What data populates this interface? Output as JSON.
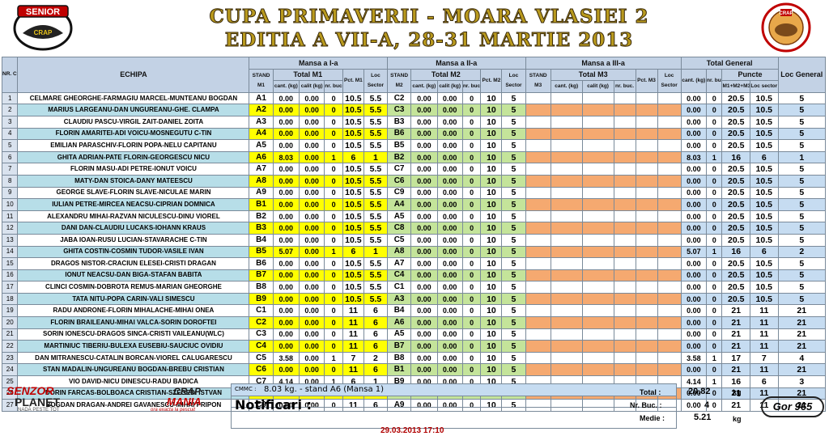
{
  "header": {
    "title_line1": "CUPA PRIMAVERII - MOARA VLASIEI 2",
    "title_line2": "EDITIA  A VII-A, 28-31 MARTIE 2013",
    "logo_left_text": "SENIOR",
    "logo_left_sub": "CRAP",
    "logo_right_text": "CRAP"
  },
  "columns": {
    "nr": "NR. CRT.",
    "team": "ECHIPA",
    "m1": "Mansa a I-a",
    "m2": "Mansa a II-a",
    "m3": "Mansa a III-a",
    "total": "Total General",
    "loc_general": "Loc General",
    "stand_m1": "STAND M1",
    "stand_m2": "STAND M2",
    "stand_m3": "STAND M3",
    "total_m1": "Total M1",
    "total_m2": "Total M2",
    "total_m3": "Total M3",
    "cant": "cant. (kg)",
    "calit": "calit (kg)",
    "nrbuc": "nr. buc.",
    "pct_m1": "Pct. M1",
    "pct_m2": "Pct. M2",
    "pct_m3": "Pct. M3",
    "loc_sector": "Loc Sector",
    "puncte": "Puncte",
    "m1m2m3": "M1+M2+M3",
    "loc_sector2": "Loc sector"
  },
  "rows": [
    {
      "nr": "1",
      "team": "CELMARE GHEORGHE-FARMAGIU MARCEL-MUNTEANU BOGDAN",
      "s1": "A1",
      "c1": "0.00",
      "q1": "0.00",
      "b1": "0",
      "p1": "10.5",
      "l1": "5.5",
      "s2": "C2",
      "c2": "0.00",
      "q2": "0.00",
      "b2": "0",
      "p2": "10",
      "l2": "5",
      "tc": "0.00",
      "tb": "0",
      "tp": "20.5",
      "tl": "10.5",
      "lg": "5"
    },
    {
      "nr": "2",
      "team": "MARIUS LARGEANU-DAN UNGUREANU-GHE. CLAMPA",
      "s1": "A2",
      "c1": "0.00",
      "q1": "0.00",
      "b1": "0",
      "p1": "10.5",
      "l1": "5.5",
      "s2": "C3",
      "c2": "0.00",
      "q2": "0.00",
      "b2": "0",
      "p2": "10",
      "l2": "5",
      "tc": "0.00",
      "tb": "0",
      "tp": "20.5",
      "tl": "10.5",
      "lg": "5"
    },
    {
      "nr": "3",
      "team": "CLAUDIU PASCU-VIRGIL ZAIT-DANIEL ZOITA",
      "s1": "A3",
      "c1": "0.00",
      "q1": "0.00",
      "b1": "0",
      "p1": "10.5",
      "l1": "5.5",
      "s2": "B3",
      "c2": "0.00",
      "q2": "0.00",
      "b2": "0",
      "p2": "10",
      "l2": "5",
      "tc": "0.00",
      "tb": "0",
      "tp": "20.5",
      "tl": "10.5",
      "lg": "5"
    },
    {
      "nr": "4",
      "team": "FLORIN AMARITEI-ADI VOICU-MOSNEGUTU C-TIN",
      "s1": "A4",
      "c1": "0.00",
      "q1": "0.00",
      "b1": "0",
      "p1": "10.5",
      "l1": "5.5",
      "s2": "B6",
      "c2": "0.00",
      "q2": "0.00",
      "b2": "0",
      "p2": "10",
      "l2": "5",
      "tc": "0.00",
      "tb": "0",
      "tp": "20.5",
      "tl": "10.5",
      "lg": "5"
    },
    {
      "nr": "5",
      "team": "EMILIAN PARASCHIV-FLORIN POPA-NELU CAPITANU",
      "s1": "A5",
      "c1": "0.00",
      "q1": "0.00",
      "b1": "0",
      "p1": "10.5",
      "l1": "5.5",
      "s2": "B5",
      "c2": "0.00",
      "q2": "0.00",
      "b2": "0",
      "p2": "10",
      "l2": "5",
      "tc": "0.00",
      "tb": "0",
      "tp": "20.5",
      "tl": "10.5",
      "lg": "5"
    },
    {
      "nr": "6",
      "team": "GHITA ADRIAN-PATE FLORIN-GEORGESCU NICU",
      "s1": "A6",
      "c1": "8.03",
      "q1": "0.00",
      "b1": "1",
      "p1": "6",
      "l1": "1",
      "s2": "B2",
      "c2": "0.00",
      "q2": "0.00",
      "b2": "0",
      "p2": "10",
      "l2": "5",
      "tc": "8.03",
      "tb": "1",
      "tp": "16",
      "tl": "6",
      "lg": "1"
    },
    {
      "nr": "7",
      "team": "FLORIN MASU-ADI PETRE-IONUT VOICU",
      "s1": "A7",
      "c1": "0.00",
      "q1": "0.00",
      "b1": "0",
      "p1": "10.5",
      "l1": "5.5",
      "s2": "C7",
      "c2": "0.00",
      "q2": "0.00",
      "b2": "0",
      "p2": "10",
      "l2": "5",
      "tc": "0.00",
      "tb": "0",
      "tp": "20.5",
      "tl": "10.5",
      "lg": "5"
    },
    {
      "nr": "8",
      "team": "MATY-DAN STOICA-DANY MATEESCU",
      "s1": "A8",
      "c1": "0.00",
      "q1": "0.00",
      "b1": "0",
      "p1": "10.5",
      "l1": "5.5",
      "s2": "C6",
      "c2": "0.00",
      "q2": "0.00",
      "b2": "0",
      "p2": "10",
      "l2": "5",
      "tc": "0.00",
      "tb": "0",
      "tp": "20.5",
      "tl": "10.5",
      "lg": "5"
    },
    {
      "nr": "9",
      "team": "GEORGE SLAVE-FLORIN SLAVE-NICULAE MARIN",
      "s1": "A9",
      "c1": "0.00",
      "q1": "0.00",
      "b1": "0",
      "p1": "10.5",
      "l1": "5.5",
      "s2": "C9",
      "c2": "0.00",
      "q2": "0.00",
      "b2": "0",
      "p2": "10",
      "l2": "5",
      "tc": "0.00",
      "tb": "0",
      "tp": "20.5",
      "tl": "10.5",
      "lg": "5"
    },
    {
      "nr": "10",
      "team": "IULIAN PETRE-MIRCEA NEACSU-CIPRIAN DOMNICA",
      "s1": "B1",
      "c1": "0.00",
      "q1": "0.00",
      "b1": "0",
      "p1": "10.5",
      "l1": "5.5",
      "s2": "A4",
      "c2": "0.00",
      "q2": "0.00",
      "b2": "0",
      "p2": "10",
      "l2": "5",
      "tc": "0.00",
      "tb": "0",
      "tp": "20.5",
      "tl": "10.5",
      "lg": "5"
    },
    {
      "nr": "11",
      "team": "ALEXANDRU MIHAI-RAZVAN NICULESCU-DINU VIOREL",
      "s1": "B2",
      "c1": "0.00",
      "q1": "0.00",
      "b1": "0",
      "p1": "10.5",
      "l1": "5.5",
      "s2": "A5",
      "c2": "0.00",
      "q2": "0.00",
      "b2": "0",
      "p2": "10",
      "l2": "5",
      "tc": "0.00",
      "tb": "0",
      "tp": "20.5",
      "tl": "10.5",
      "lg": "5"
    },
    {
      "nr": "12",
      "team": "DANI DAN-CLAUDIU LUCAKS-IOHANN KRAUS",
      "s1": "B3",
      "c1": "0.00",
      "q1": "0.00",
      "b1": "0",
      "p1": "10.5",
      "l1": "5.5",
      "s2": "C8",
      "c2": "0.00",
      "q2": "0.00",
      "b2": "0",
      "p2": "10",
      "l2": "5",
      "tc": "0.00",
      "tb": "0",
      "tp": "20.5",
      "tl": "10.5",
      "lg": "5"
    },
    {
      "nr": "13",
      "team": "JABA IOAN-RUSU LUCIAN-STAVARACHE C-TIN",
      "s1": "B4",
      "c1": "0.00",
      "q1": "0.00",
      "b1": "0",
      "p1": "10.5",
      "l1": "5.5",
      "s2": "C5",
      "c2": "0.00",
      "q2": "0.00",
      "b2": "0",
      "p2": "10",
      "l2": "5",
      "tc": "0.00",
      "tb": "0",
      "tp": "20.5",
      "tl": "10.5",
      "lg": "5"
    },
    {
      "nr": "14",
      "team": "GHITA COSTIN-COSMIN TUDOR-VASILE IVAN",
      "s1": "B5",
      "c1": "5.07",
      "q1": "0.00",
      "b1": "1",
      "p1": "6",
      "l1": "1",
      "s2": "A8",
      "c2": "0.00",
      "q2": "0.00",
      "b2": "0",
      "p2": "10",
      "l2": "5",
      "tc": "5.07",
      "tb": "1",
      "tp": "16",
      "tl": "6",
      "lg": "2"
    },
    {
      "nr": "15",
      "team": "DRAGOS NISTOR-CRACIUN ELESEI-CRISTI DRAGAN",
      "s1": "B6",
      "c1": "0.00",
      "q1": "0.00",
      "b1": "0",
      "p1": "10.5",
      "l1": "5.5",
      "s2": "A7",
      "c2": "0.00",
      "q2": "0.00",
      "b2": "0",
      "p2": "10",
      "l2": "5",
      "tc": "0.00",
      "tb": "0",
      "tp": "20.5",
      "tl": "10.5",
      "lg": "5"
    },
    {
      "nr": "16",
      "team": "IONUT NEACSU-DAN BIGA-STAFAN BABITA",
      "s1": "B7",
      "c1": "0.00",
      "q1": "0.00",
      "b1": "0",
      "p1": "10.5",
      "l1": "5.5",
      "s2": "C4",
      "c2": "0.00",
      "q2": "0.00",
      "b2": "0",
      "p2": "10",
      "l2": "5",
      "tc": "0.00",
      "tb": "0",
      "tp": "20.5",
      "tl": "10.5",
      "lg": "5"
    },
    {
      "nr": "17",
      "team": "CLINCI COSMIN-DOBROTA REMUS-MARIAN GHEORGHE",
      "s1": "B8",
      "c1": "0.00",
      "q1": "0.00",
      "b1": "0",
      "p1": "10.5",
      "l1": "5.5",
      "s2": "C1",
      "c2": "0.00",
      "q2": "0.00",
      "b2": "0",
      "p2": "10",
      "l2": "5",
      "tc": "0.00",
      "tb": "0",
      "tp": "20.5",
      "tl": "10.5",
      "lg": "5"
    },
    {
      "nr": "18",
      "team": "TATA NITU-POPA CARIN-VALI SIMESCU",
      "s1": "B9",
      "c1": "0.00",
      "q1": "0.00",
      "b1": "0",
      "p1": "10.5",
      "l1": "5.5",
      "s2": "A3",
      "c2": "0.00",
      "q2": "0.00",
      "b2": "0",
      "p2": "10",
      "l2": "5",
      "tc": "0.00",
      "tb": "0",
      "tp": "20.5",
      "tl": "10.5",
      "lg": "5"
    },
    {
      "nr": "19",
      "team": "RADU ANDRONE-FLORIN MIHALACHE-MIHAI ONEA",
      "s1": "C1",
      "c1": "0.00",
      "q1": "0.00",
      "b1": "0",
      "p1": "11",
      "l1": "6",
      "s2": "B4",
      "c2": "0.00",
      "q2": "0.00",
      "b2": "0",
      "p2": "10",
      "l2": "5",
      "tc": "0.00",
      "tb": "0",
      "tp": "21",
      "tl": "11",
      "lg": "21"
    },
    {
      "nr": "20",
      "team": "FLORIN BRAILEANU-MIHAI VALCA-SORIN DOROFTEI",
      "s1": "C2",
      "c1": "0.00",
      "q1": "0.00",
      "b1": "0",
      "p1": "11",
      "l1": "6",
      "s2": "A6",
      "c2": "0.00",
      "q2": "0.00",
      "b2": "0",
      "p2": "10",
      "l2": "5",
      "tc": "0.00",
      "tb": "0",
      "tp": "21",
      "tl": "11",
      "lg": "21"
    },
    {
      "nr": "21",
      "team": "SORIN IONESCU-DRAGOS SINCA-CRISTI VAILEANU(WLC)",
      "s1": "C3",
      "c1": "0.00",
      "q1": "0.00",
      "b1": "0",
      "p1": "11",
      "l1": "6",
      "s2": "A5",
      "c2": "0.00",
      "q2": "0.00",
      "b2": "0",
      "p2": "10",
      "l2": "5",
      "tc": "0.00",
      "tb": "0",
      "tp": "21",
      "tl": "11",
      "lg": "21"
    },
    {
      "nr": "22",
      "team": "MARTINIUC TIBERIU-BULEXA EUSEBIU-SAUCIUC OVIDIU",
      "s1": "C4",
      "c1": "0.00",
      "q1": "0.00",
      "b1": "0",
      "p1": "11",
      "l1": "6",
      "s2": "B7",
      "c2": "0.00",
      "q2": "0.00",
      "b2": "0",
      "p2": "10",
      "l2": "5",
      "tc": "0.00",
      "tb": "0",
      "tp": "21",
      "tl": "11",
      "lg": "21"
    },
    {
      "nr": "23",
      "team": "DAN MITRANESCU-CATALIN BORCAN-VIOREL CALUGARESCU",
      "s1": "C5",
      "c1": "3.58",
      "q1": "0.00",
      "b1": "1",
      "p1": "7",
      "l1": "2",
      "s2": "B8",
      "c2": "0.00",
      "q2": "0.00",
      "b2": "0",
      "p2": "10",
      "l2": "5",
      "tc": "3.58",
      "tb": "1",
      "tp": "17",
      "tl": "7",
      "lg": "4"
    },
    {
      "nr": "24",
      "team": "STAN MADALIN-UNGUREANU BOGDAN-BREBU CRISTIAN",
      "s1": "C6",
      "c1": "0.00",
      "q1": "0.00",
      "b1": "0",
      "p1": "11",
      "l1": "6",
      "s2": "B1",
      "c2": "0.00",
      "q2": "0.00",
      "b2": "0",
      "p2": "10",
      "l2": "5",
      "tc": "0.00",
      "tb": "0",
      "tp": "21",
      "tl": "11",
      "lg": "21"
    },
    {
      "nr": "25",
      "team": "VIO DAVID-NICU DINESCU-RADU BADICA",
      "s1": "C7",
      "c1": "4.14",
      "q1": "0.00",
      "b1": "1",
      "p1": "6",
      "l1": "1",
      "s2": "B9",
      "c2": "0.00",
      "q2": "0.00",
      "b2": "0",
      "p2": "10",
      "l2": "5",
      "tc": "4.14",
      "tb": "1",
      "tp": "16",
      "tl": "6",
      "lg": "3"
    },
    {
      "nr": "26",
      "team": "DORIN FARCAS-BOLBOACA CRISTIAN-SZEGEDI ISTVAN",
      "s1": "C8",
      "c1": "0.00",
      "q1": "0.00",
      "b1": "0",
      "p1": "11",
      "l1": "6",
      "s2": "A1",
      "c2": "0.00",
      "q2": "0.00",
      "b2": "0",
      "p2": "10",
      "l2": "5",
      "tc": "0.00",
      "tb": "0",
      "tp": "21",
      "tl": "11",
      "lg": "21"
    },
    {
      "nr": "27",
      "team": "BOGDAN DRAGAN-ANDREI GAVANESCU-MIHAI PRIPON",
      "s1": "C9",
      "c1": "0.00",
      "q1": "0.00",
      "b1": "0",
      "p1": "11",
      "l1": "6",
      "s2": "A9",
      "c2": "0.00",
      "q2": "0.00",
      "b2": "0",
      "p2": "10",
      "l2": "5",
      "tc": "0.00",
      "tb": "0",
      "tp": "21",
      "tl": "11",
      "lg": "21"
    }
  ],
  "footer": {
    "cmmc_label": "CMMC :",
    "cmmc_value": "8.03 kg. - stand A6 (Mansa 1)",
    "notificari_label": "Notificari :",
    "total_label": "Total :",
    "total_value": "20.82",
    "total_unit": "kg",
    "nrbuc_label": "Nr. Buc. :",
    "nrbuc_value": "4",
    "medie_label": "Medie :",
    "medie_value": "5.21",
    "medie_unit": "kg",
    "date": "29.03.2013 17:10"
  },
  "sponsors": {
    "senzor": "SENZOR",
    "planet": "PLANET",
    "planet_tag": "NADĂ PESTE TOT",
    "crap": "CRAP",
    "mania": "MANIA",
    "mania_tag": "ora exacta la pescuit",
    "gor": "Gor 965"
  }
}
